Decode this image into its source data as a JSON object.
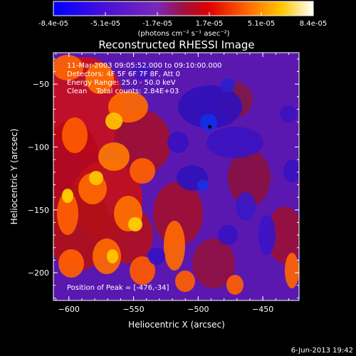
{
  "colorbar": {
    "tick_labels": [
      "-8.4e-05",
      "-5.1e-05",
      "-1.7e-05",
      "1.7e-05",
      "5.1e-05",
      "8.4e-05"
    ],
    "unit_label": "(photons cm⁻² s⁻¹ asec⁻²)",
    "min": -8.4e-05,
    "max": 8.4e-05
  },
  "plot": {
    "title": "Reconstructed RHESSI Image",
    "info_lines": [
      "11-Mar-2003 09:05:52.000 to 09:10:00.000",
      "Detectors: 4F 5F 6F 7F 8F, Att 0",
      "Energy Range: 25.0 - 50.0 keV",
      "Clean    Total counts: 2.84E+03"
    ],
    "peak_text": "Position of Peak = [-476,-34]"
  },
  "footer": {
    "date": "6-Jun-2013 19:42"
  },
  "chart_data": {
    "type": "heatmap",
    "title": "Reconstructed RHESSI Image",
    "xlabel": "Heliocentric X (arcsec)",
    "ylabel": "Heliocentric Y (arcsec)",
    "xlim": [
      -612,
      -422
    ],
    "ylim": [
      -222,
      -25
    ],
    "x_ticks": [
      -600,
      -550,
      -500,
      -450
    ],
    "y_ticks": [
      -50,
      -100,
      -150,
      -200
    ],
    "x_tick_labels": [
      "−600",
      "−550",
      "−500",
      "−450"
    ],
    "y_tick_labels": [
      "−50",
      "−100",
      "−150",
      "−200"
    ],
    "colormap": "blue-purple-red-orange-yellow-white",
    "peak_position": [
      -476,
      -34
    ],
    "marked_point": [
      -491,
      -84
    ]
  }
}
